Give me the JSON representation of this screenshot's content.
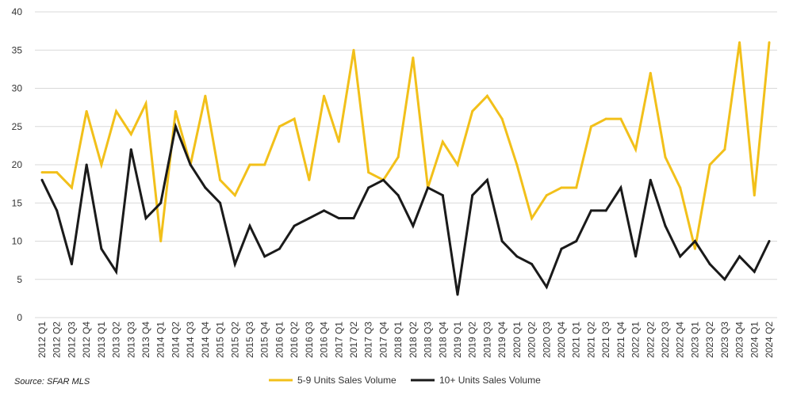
{
  "chart_data": {
    "type": "line",
    "categories": [
      "2012 Q1",
      "2012 Q2",
      "2012 Q3",
      "2012 Q4",
      "2013 Q1",
      "2013 Q2",
      "2013 Q3",
      "2013 Q4",
      "2014 Q1",
      "2014 Q2",
      "2014 Q3",
      "2014 Q4",
      "2015 Q1",
      "2015 Q2",
      "2015 Q3",
      "2015 Q4",
      "2016 Q1",
      "2016 Q2",
      "2016 Q3",
      "2016 Q4",
      "2017 Q1",
      "2017 Q2",
      "2017 Q3",
      "2017 Q4",
      "2018 Q1",
      "2018 Q2",
      "2018 Q3",
      "2018 Q4",
      "2019 Q1",
      "2019 Q2",
      "2019 Q3",
      "2019 Q4",
      "2020 Q1",
      "2020 Q2",
      "2020 Q3",
      "2020 Q4",
      "2021 Q1",
      "2021 Q2",
      "2021 Q3",
      "2021 Q4",
      "2022 Q1",
      "2022 Q2",
      "2022 Q3",
      "2022 Q4",
      "2023 Q1",
      "2023 Q2",
      "2023 Q3",
      "2023 Q4",
      "2024 Q1",
      "2024 Q2"
    ],
    "series": [
      {
        "name": "5-9 Units Sales Volume",
        "color": "#F2C01A",
        "values": [
          19,
          19,
          17,
          27,
          20,
          27,
          24,
          28,
          10,
          27,
          20,
          29,
          18,
          16,
          20,
          20,
          25,
          26,
          18,
          29,
          23,
          35,
          19,
          18,
          21,
          34,
          17,
          23,
          20,
          27,
          29,
          26,
          20,
          13,
          16,
          17,
          17,
          25,
          26,
          26,
          22,
          32,
          21,
          17,
          9,
          20,
          22,
          36,
          16,
          36
        ]
      },
      {
        "name": "10+ Units Sales Volume",
        "color": "#1A1A1A",
        "values": [
          18,
          14,
          7,
          20,
          9,
          6,
          22,
          13,
          15,
          25,
          20,
          17,
          15,
          7,
          12,
          8,
          9,
          12,
          13,
          14,
          13,
          13,
          17,
          18,
          16,
          12,
          17,
          16,
          3,
          16,
          18,
          10,
          8,
          7,
          4,
          9,
          10,
          14,
          14,
          17,
          8,
          18,
          12,
          8,
          10,
          7,
          5,
          8,
          6,
          10
        ]
      }
    ],
    "ylim": [
      0,
      40
    ],
    "yticks": [
      0,
      5,
      10,
      15,
      20,
      25,
      30,
      35,
      40
    ],
    "grid": true,
    "legend_position": "bottom-center",
    "title": "",
    "xlabel": "",
    "ylabel": ""
  },
  "source_note": "Source: SFAR MLS"
}
